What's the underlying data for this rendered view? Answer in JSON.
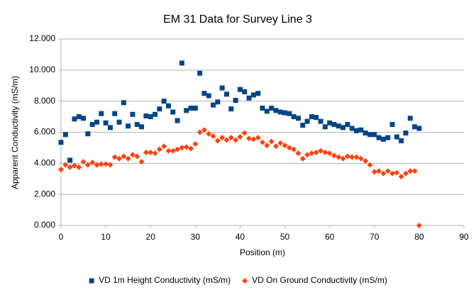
{
  "chart_data": {
    "type": "scatter",
    "title": "EM 31 Data for Survey Line 3",
    "x_label": "Position (m)",
    "y_label": "Apparent Conductivity (mS/m)",
    "x": [
      0,
      1,
      2,
      3,
      4,
      5,
      6,
      7,
      8,
      9,
      10,
      11,
      12,
      13,
      14,
      15,
      16,
      17,
      18,
      19,
      20,
      21,
      22,
      23,
      24,
      25,
      26,
      27,
      28,
      29,
      30,
      31,
      32,
      33,
      34,
      35,
      36,
      37,
      38,
      39,
      40,
      41,
      42,
      43,
      44,
      45,
      46,
      47,
      48,
      49,
      50,
      51,
      52,
      53,
      54,
      55,
      56,
      57,
      58,
      59,
      60,
      61,
      62,
      63,
      64,
      65,
      66,
      67,
      68,
      69,
      70,
      71,
      72,
      73,
      74,
      75,
      76,
      77,
      78,
      79,
      80
    ],
    "series": [
      {
        "name": "VD 1m Height Conductivity (mS/m)",
        "color": "#004586",
        "marker": "square",
        "values": [
          5.35,
          5.85,
          4.2,
          6.85,
          7.0,
          6.9,
          5.9,
          6.5,
          6.65,
          7.2,
          6.6,
          6.3,
          7.2,
          6.65,
          7.9,
          6.4,
          7.15,
          6.5,
          6.35,
          7.05,
          7.0,
          7.15,
          7.5,
          8.0,
          7.7,
          7.3,
          6.75,
          10.45,
          7.4,
          7.55,
          7.55,
          9.8,
          8.5,
          8.35,
          7.75,
          7.95,
          8.85,
          8.45,
          7.5,
          8.05,
          8.75,
          8.6,
          8.2,
          8.4,
          8.5,
          7.55,
          7.35,
          7.55,
          7.4,
          7.3,
          7.25,
          7.2,
          7.0,
          6.9,
          6.45,
          6.7,
          7.0,
          6.95,
          6.7,
          6.35,
          6.6,
          6.5,
          6.4,
          6.3,
          6.5,
          6.25,
          6.1,
          6.15,
          5.95,
          5.85,
          5.85,
          5.65,
          5.55,
          5.65,
          6.5,
          5.7,
          5.45,
          5.95,
          6.9,
          6.35,
          6.25
        ]
      },
      {
        "name": "VD On Ground Conductivity (mS/m)",
        "color": "#ff420e",
        "marker": "diamond",
        "values": [
          3.6,
          3.9,
          3.75,
          3.85,
          3.75,
          4.1,
          3.9,
          4.05,
          3.9,
          3.95,
          3.95,
          3.9,
          4.4,
          4.3,
          4.45,
          4.3,
          4.55,
          4.45,
          4.1,
          4.7,
          4.7,
          4.65,
          4.9,
          5.1,
          4.8,
          4.8,
          4.9,
          5.0,
          5.05,
          4.95,
          5.25,
          6.0,
          6.15,
          5.9,
          5.75,
          5.45,
          5.65,
          5.5,
          5.65,
          5.5,
          5.7,
          5.95,
          5.6,
          5.55,
          5.65,
          5.35,
          5.15,
          5.4,
          5.1,
          5.3,
          5.15,
          5.0,
          4.9,
          4.65,
          4.3,
          4.55,
          4.65,
          4.7,
          4.8,
          4.7,
          4.65,
          4.5,
          4.4,
          4.3,
          4.45,
          4.4,
          4.4,
          4.3,
          4.15,
          3.9,
          3.45,
          3.5,
          3.35,
          3.5,
          3.35,
          3.4,
          3.15,
          3.35,
          3.5,
          3.5,
          0
        ]
      }
    ],
    "xlim": [
      0,
      90
    ],
    "xticks": [
      0,
      10,
      20,
      30,
      40,
      50,
      60,
      70,
      80,
      90
    ],
    "ylim": [
      0,
      12
    ],
    "yticks": [
      {
        "value": 0,
        "label": "0.000"
      },
      {
        "value": 2,
        "label": "2.000"
      },
      {
        "value": 4,
        "label": "4.000"
      },
      {
        "value": 6,
        "label": "6.000"
      },
      {
        "value": 8,
        "label": "8.000"
      },
      {
        "value": 10,
        "label": "10.000"
      },
      {
        "value": 12,
        "label": "12.000"
      }
    ],
    "grid": true,
    "legend": "bottom"
  }
}
